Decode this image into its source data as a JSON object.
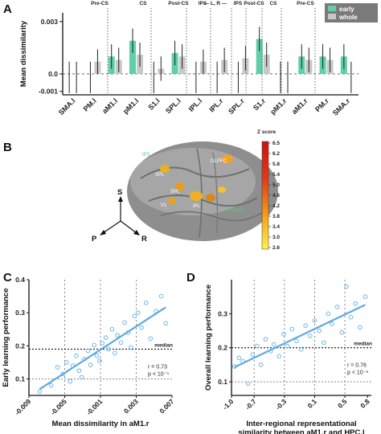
{
  "panel_labels": {
    "a": "A",
    "b": "B",
    "c": "C",
    "d": "D"
  },
  "colors": {
    "early": "#5ecfa8",
    "whole": "#c8c8c8",
    "scatter": "#6ab7e6",
    "fit": "#5ea9e0"
  },
  "chart_data": [
    {
      "type": "bar",
      "panel": "A",
      "ylabel": "Mean dissimilarity",
      "ylim": [
        -0.0012,
        0.0035
      ],
      "yticks": [
        "0.003",
        "0.0",
        "-0.001"
      ],
      "categories": [
        "SMA.l",
        "PM.l",
        "aM1.l",
        "pM1.l",
        "S1.l",
        "SPL.l",
        "IPL.l",
        "IPL.r",
        "SPL.r",
        "S1.r",
        "pM1.r",
        "aM1.r",
        "PM.r",
        "SMA.r"
      ],
      "series": [
        {
          "name": "early",
          "values": [
            0.0,
            0.0,
            0.001,
            0.0019,
            0.0,
            0.0012,
            0.0,
            0.0,
            0.0,
            0.002,
            0.0,
            0.001,
            0.001,
            0.001
          ]
        },
        {
          "name": "whole",
          "values": [
            0.0,
            0.0007,
            0.0008,
            0.0011,
            0.0003,
            0.001,
            0.0007,
            0.0008,
            0.0009,
            0.0011,
            0.0,
            0.0008,
            0.0008,
            0.0
          ]
        }
      ],
      "top_labels": [
        "Pre-CS",
        "CS",
        "Post-CS",
        "IPS",
        "— L, R —",
        "IPS",
        "Post-CS",
        "CS",
        "Pre-CS"
      ]
    },
    {
      "type": "scatter",
      "panel": "C",
      "xlabel": "Mean dissimilarity in aM1.r",
      "ylabel": "Early learning performance",
      "xticks": [
        "-0.009",
        "-0.005",
        "-0.001",
        "0.003",
        "0.007"
      ],
      "yticks": [
        "0.4",
        "0.3",
        "0.2",
        "0.1"
      ],
      "xlim": [
        -0.009,
        0.007
      ],
      "ylim": [
        0.05,
        0.4
      ],
      "x": [
        -0.0078,
        -0.0065,
        -0.0058,
        -0.0052,
        -0.0048,
        -0.0044,
        -0.0041,
        -0.0037,
        -0.0034,
        -0.0031,
        -0.0028,
        -0.0024,
        -0.0021,
        -0.0017,
        -0.0014,
        -0.0011,
        -0.0008,
        -0.0004,
        -0.0001,
        0.0003,
        0.0006,
        0.0009,
        0.0013,
        0.0017,
        0.0021,
        0.0024,
        0.0028,
        0.0032,
        0.0036,
        0.0041,
        0.0046,
        0.0052,
        0.0058,
        0.0063
      ],
      "y": [
        0.062,
        0.08,
        0.135,
        0.115,
        0.15,
        0.092,
        0.14,
        0.17,
        0.125,
        0.105,
        0.16,
        0.185,
        0.142,
        0.202,
        0.17,
        0.155,
        0.208,
        0.225,
        0.19,
        0.25,
        0.178,
        0.232,
        0.21,
        0.27,
        0.24,
        0.195,
        0.29,
        0.3,
        0.255,
        0.33,
        0.222,
        0.305,
        0.35,
        0.268
      ],
      "hlines": [
        0.19,
        0.1
      ],
      "vlines": [
        -0.005,
        -0.001,
        0.003
      ],
      "median_label": "median",
      "stats": [
        "r = 0.73",
        "p < 10⁻⁵"
      ]
    },
    {
      "type": "scatter",
      "panel": "D",
      "xlabel": "Inter-regional representational",
      "xlabel2": "similarity between aM1.r and HPC.l",
      "ylabel": "Overall learning performance",
      "xticks": [
        "-1.0",
        "-0.7",
        "-0.3",
        "0.1",
        "0.5",
        "0.8"
      ],
      "yticks": [
        "0.3",
        "0.2",
        "0.1"
      ],
      "xlim": [
        -1.0,
        0.85
      ],
      "ylim": [
        0.06,
        0.4
      ],
      "x": [
        -0.96,
        -0.9,
        -0.85,
        -0.78,
        -0.72,
        -0.66,
        -0.61,
        -0.55,
        -0.48,
        -0.44,
        -0.37,
        -0.31,
        -0.26,
        -0.2,
        -0.14,
        -0.08,
        -0.02,
        0.04,
        0.1,
        0.16,
        0.22,
        0.28,
        0.33,
        0.4,
        0.46,
        0.52,
        0.58,
        0.64,
        0.7,
        0.77
      ],
      "y": [
        0.145,
        0.17,
        0.16,
        0.095,
        0.18,
        0.205,
        0.15,
        0.225,
        0.19,
        0.21,
        0.175,
        0.24,
        0.205,
        0.255,
        0.22,
        0.195,
        0.265,
        0.235,
        0.28,
        0.25,
        0.215,
        0.3,
        0.27,
        0.32,
        0.245,
        0.38,
        0.29,
        0.33,
        0.26,
        0.35
      ],
      "hlines": [
        0.2,
        0.1
      ],
      "vlines": [
        -0.7,
        -0.3,
        0.1,
        0.5
      ],
      "median_label": "median",
      "stats": [
        "r = 0.76",
        "p < 10⁻⁶"
      ]
    }
  ],
  "brain": {
    "colorbar_title": "Z score",
    "colorbar_ticks": [
      "6.5",
      "6.2",
      "5.8",
      "5.4",
      "5.0",
      "4.6",
      "4.2",
      "3.8",
      "3.4",
      "3.0",
      "2.6"
    ],
    "axis_labels": [
      "S",
      "P",
      "R"
    ],
    "region_labels": [
      "DLPFC",
      "SPL",
      "SPL",
      "V1",
      "IPS",
      "Post-CS",
      "IPL"
    ]
  }
}
